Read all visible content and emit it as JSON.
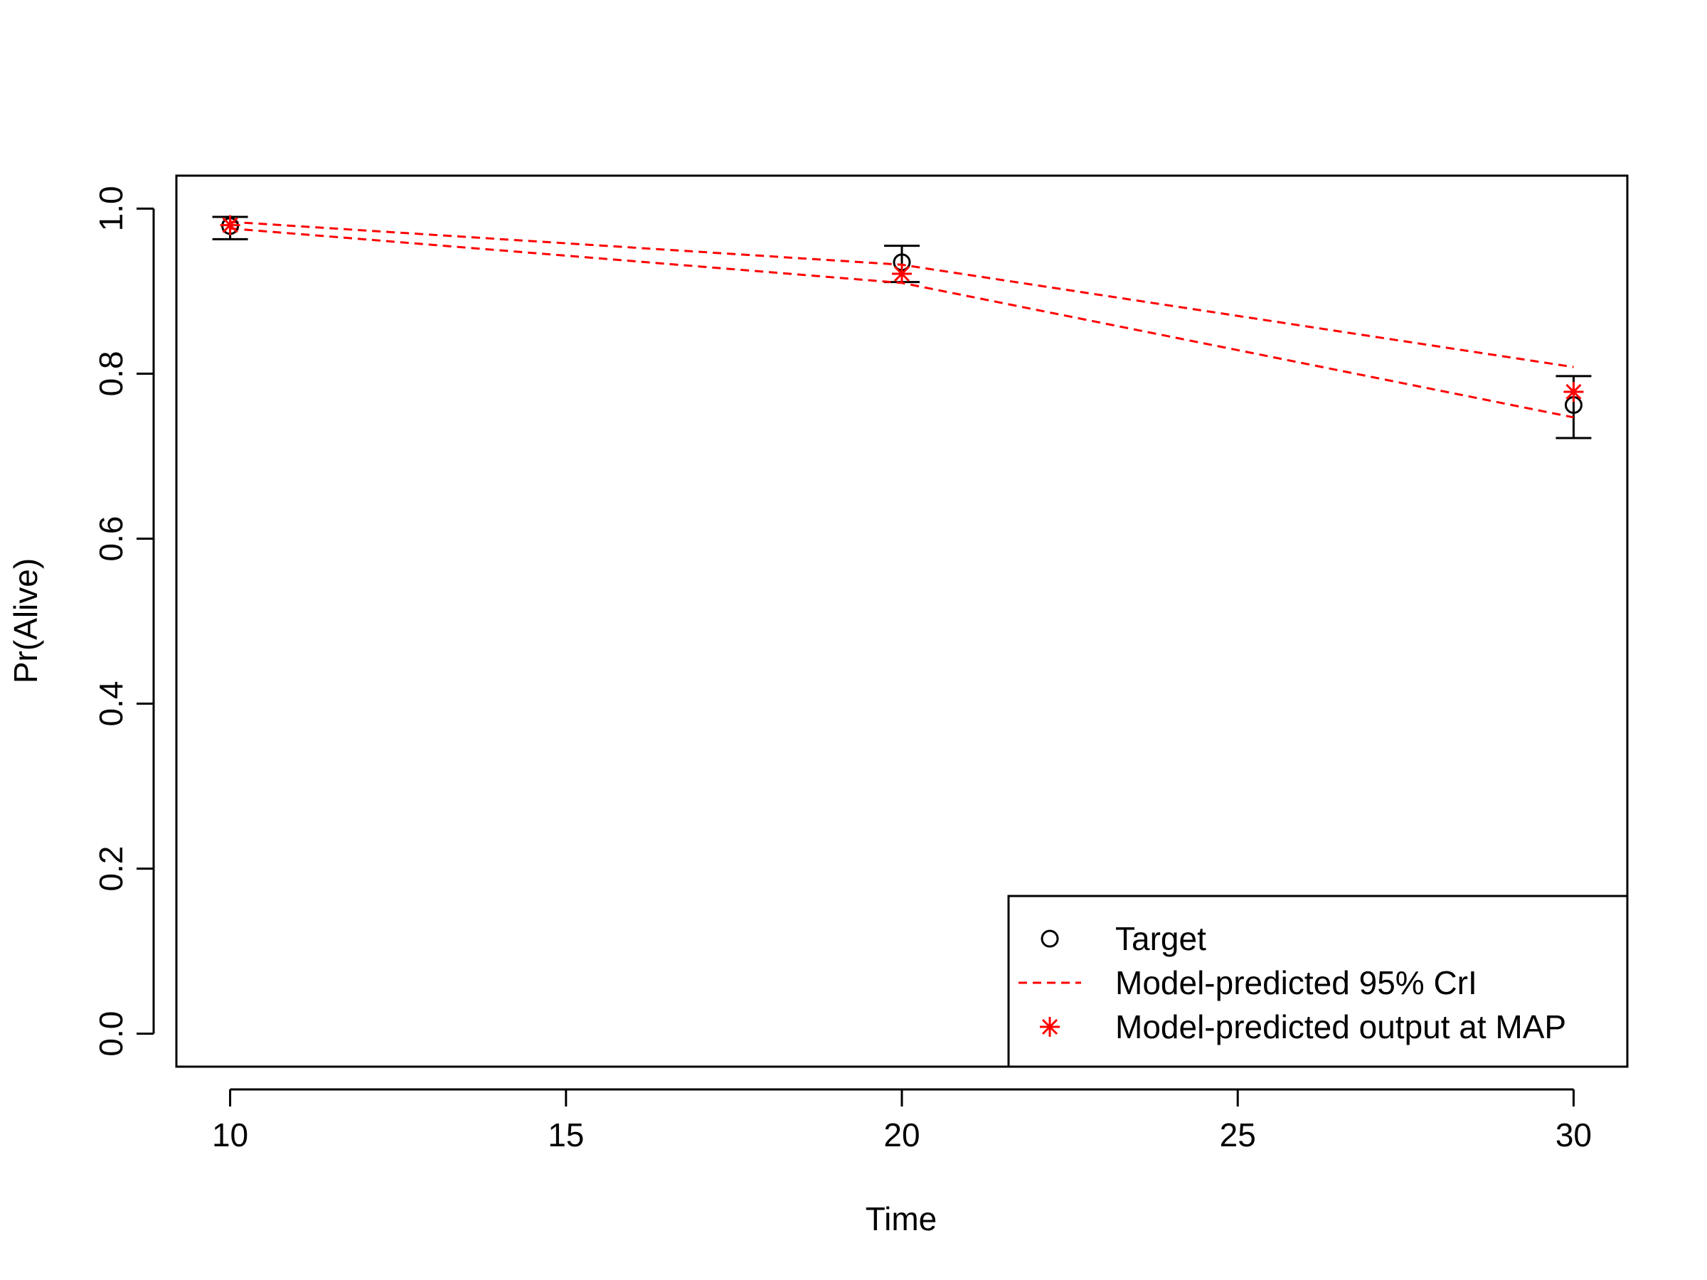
{
  "chart_data": {
    "type": "line",
    "title": "",
    "xlabel": "Time",
    "ylabel": "Pr(Alive)",
    "xlim": [
      9.2,
      30.8
    ],
    "ylim": [
      -0.04,
      1.04
    ],
    "x_ticks": [
      10,
      15,
      20,
      25,
      30
    ],
    "y_ticks": [
      0.0,
      0.2,
      0.4,
      0.6,
      0.8,
      1.0
    ],
    "x_tick_labels": [
      "10",
      "15",
      "20",
      "25",
      "30"
    ],
    "y_tick_labels": [
      "0.0",
      "0.2",
      "0.4",
      "0.6",
      "0.8",
      "1.0"
    ],
    "grid": false,
    "legend_position": "bottom-right",
    "series": [
      {
        "name": "Target",
        "kind": "points-with-errorbars",
        "marker": "open-circle",
        "color": "#000000",
        "x": [
          10,
          20,
          30
        ],
        "y": [
          0.979,
          0.935,
          0.762
        ],
        "lower": [
          0.963,
          0.911,
          0.722
        ],
        "upper": [
          0.99,
          0.955,
          0.797
        ]
      },
      {
        "name": "Model-predicted 95% CrI",
        "kind": "interval-lines",
        "line_style": "dashed",
        "color": "#ff0000",
        "x": [
          10,
          20,
          30
        ],
        "lower": [
          0.976,
          0.91,
          0.747
        ],
        "upper": [
          0.984,
          0.932,
          0.808
        ]
      },
      {
        "name": "Model-predicted output at MAP",
        "kind": "points",
        "marker": "asterisk",
        "color": "#ff0000",
        "x": [
          10,
          20,
          30
        ],
        "y": [
          0.98,
          0.921,
          0.778
        ]
      }
    ]
  }
}
